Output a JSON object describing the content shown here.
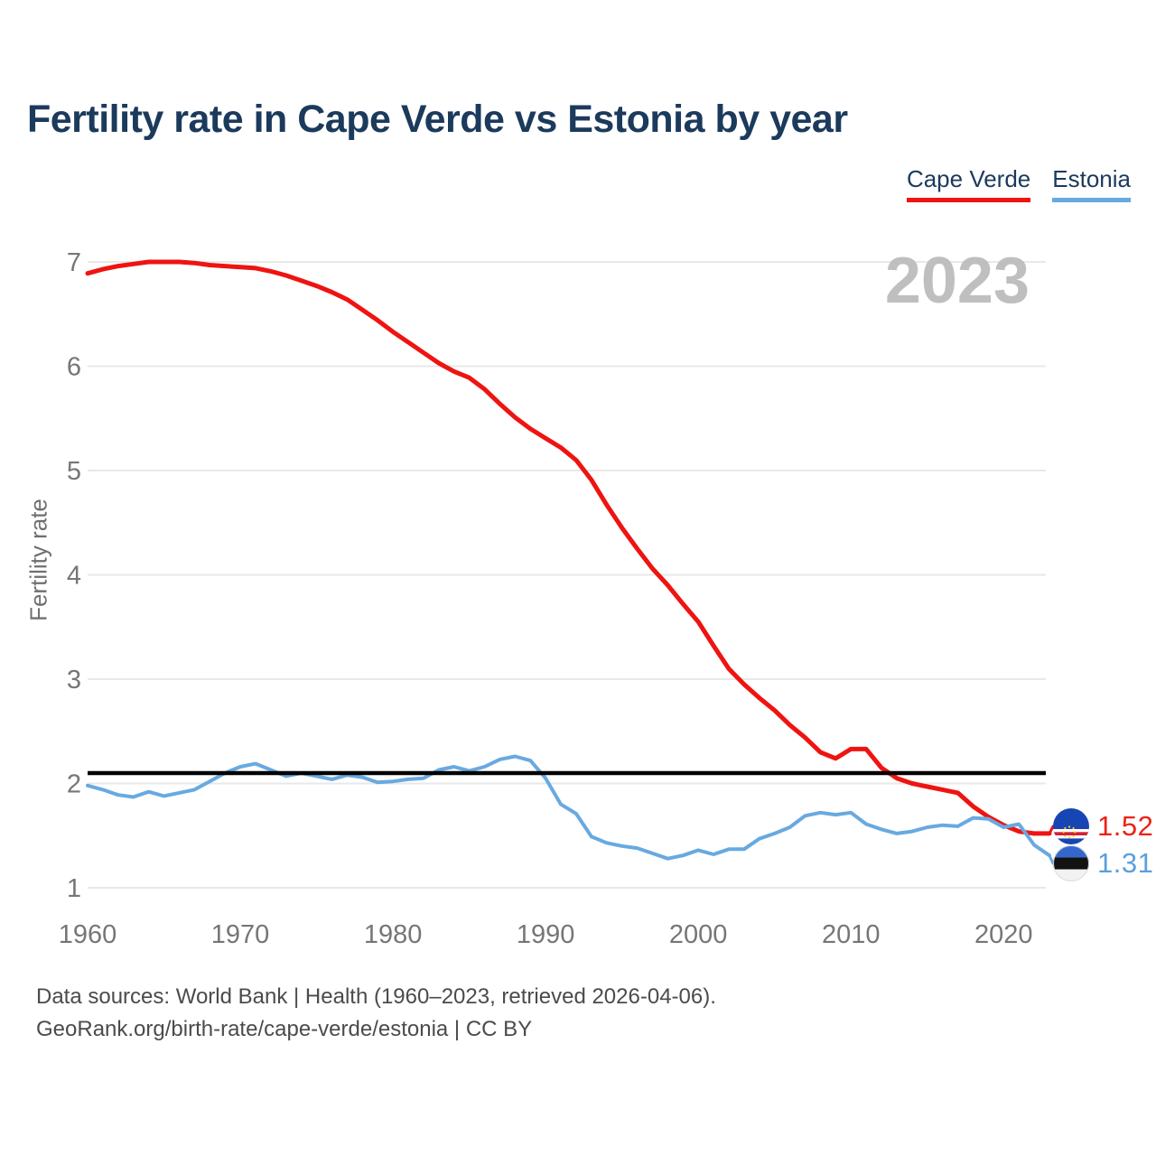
{
  "header": {
    "title": "Fertility rate in Cape Verde vs Estonia by year"
  },
  "legend": {
    "items": [
      {
        "label": "Cape Verde",
        "color": "#ee1411"
      },
      {
        "label": "Estonia",
        "color": "#68a9e0"
      }
    ]
  },
  "watermark": "2023",
  "end_labels": [
    {
      "series": "Cape Verde",
      "value": "1.52",
      "color": "#ee2015",
      "flag": "cape-verde-flag"
    },
    {
      "series": "Estonia",
      "value": "1.31",
      "color": "#5b9fdd",
      "flag": "estonia-flag"
    }
  ],
  "footer": {
    "line1": "Data sources: World Bank | Health (1960–2023, retrieved 2026-04-06).",
    "line2": "GeoRank.org/birth-rate/cape-verde/estonia | CC BY"
  },
  "chart_data": {
    "type": "line",
    "title": "Fertility rate in Cape Verde vs Estonia by year",
    "xlabel": "",
    "ylabel": "Fertility rate",
    "xlim": [
      1960,
      2023
    ],
    "ylim": [
      1,
      7
    ],
    "y_ticks": [
      1,
      2,
      3,
      4,
      5,
      6,
      7
    ],
    "x_ticks": [
      1960,
      1970,
      1980,
      1990,
      2000,
      2010,
      2020
    ],
    "grid": true,
    "legend_position": "top-right",
    "reference_line": {
      "value": 2.1,
      "color": "#000000"
    },
    "x": [
      1960,
      1961,
      1962,
      1963,
      1964,
      1965,
      1966,
      1967,
      1968,
      1969,
      1970,
      1971,
      1972,
      1973,
      1974,
      1975,
      1976,
      1977,
      1978,
      1979,
      1980,
      1981,
      1982,
      1983,
      1984,
      1985,
      1986,
      1987,
      1988,
      1989,
      1990,
      1991,
      1992,
      1993,
      1994,
      1995,
      1996,
      1997,
      1998,
      1999,
      2000,
      2001,
      2002,
      2003,
      2004,
      2005,
      2006,
      2007,
      2008,
      2009,
      2010,
      2011,
      2012,
      2013,
      2014,
      2015,
      2016,
      2017,
      2018,
      2019,
      2020,
      2021,
      2022,
      2023
    ],
    "series": [
      {
        "name": "Cape Verde",
        "color": "#ee1411",
        "stroke_width": 5,
        "end_value": 1.52,
        "values": [
          6.89,
          6.93,
          6.96,
          6.98,
          7.0,
          7.0,
          7.0,
          6.99,
          6.97,
          6.96,
          6.95,
          6.94,
          6.91,
          6.87,
          6.82,
          6.77,
          6.71,
          6.64,
          6.54,
          6.44,
          6.33,
          6.23,
          6.13,
          6.03,
          5.95,
          5.89,
          5.78,
          5.64,
          5.51,
          5.4,
          5.31,
          5.22,
          5.1,
          4.91,
          4.67,
          4.45,
          4.25,
          4.06,
          3.9,
          3.72,
          3.55,
          3.32,
          3.1,
          2.95,
          2.82,
          2.7,
          2.56,
          2.44,
          2.3,
          2.24,
          2.33,
          2.33,
          2.15,
          2.05,
          2.0,
          1.97,
          1.94,
          1.91,
          1.78,
          1.68,
          1.6,
          1.54,
          1.52,
          1.52
        ]
      },
      {
        "name": "Estonia",
        "color": "#68a9e0",
        "stroke_width": 4,
        "end_value": 1.31,
        "values": [
          1.98,
          1.94,
          1.89,
          1.87,
          1.92,
          1.88,
          1.91,
          1.94,
          2.02,
          2.1,
          2.16,
          2.19,
          2.13,
          2.07,
          2.1,
          2.07,
          2.04,
          2.08,
          2.06,
          2.01,
          2.02,
          2.04,
          2.05,
          2.13,
          2.16,
          2.12,
          2.16,
          2.23,
          2.26,
          2.22,
          2.05,
          1.8,
          1.71,
          1.49,
          1.43,
          1.4,
          1.38,
          1.33,
          1.28,
          1.31,
          1.36,
          1.32,
          1.37,
          1.37,
          1.47,
          1.52,
          1.58,
          1.69,
          1.72,
          1.7,
          1.72,
          1.61,
          1.56,
          1.52,
          1.54,
          1.58,
          1.6,
          1.59,
          1.67,
          1.66,
          1.58,
          1.61,
          1.41,
          1.31
        ]
      }
    ]
  }
}
